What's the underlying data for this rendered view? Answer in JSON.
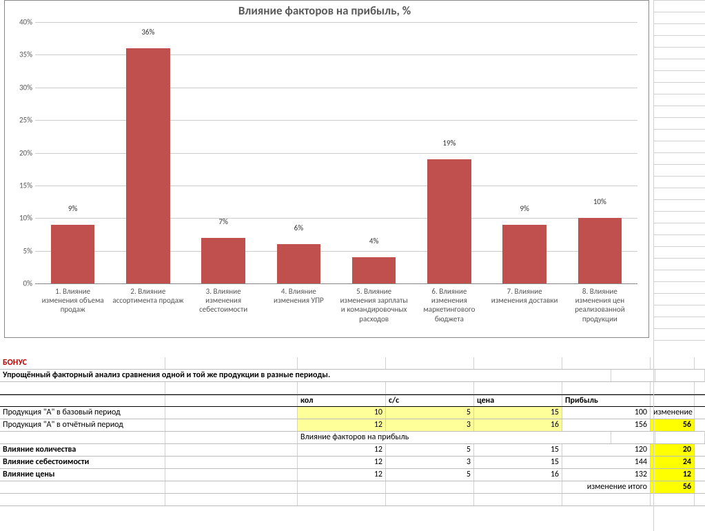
{
  "chart": {
    "type": "bar",
    "title": "Влияние факторов на прибыль, %",
    "title_fontsize": 17,
    "title_color": "#5a5a5a",
    "y_max": 40,
    "y_tick_step": 5,
    "y_tick_format_suffix": "%",
    "bar_color": "#c0504d",
    "grid_color": "#cccccc",
    "axis_color": "#888888",
    "label_fontsize": 11,
    "background_color": "#ffffff",
    "categories": [
      "1. Влияние изменения объема продаж",
      "2. Влияние ассортимента продаж",
      "3. Влияние изменения себестоимости",
      "4. Влияние изменения УПР",
      "5. Влияние изменения зарплаты и командировочных расходов",
      "6. Влияние изменения маркетингового бюджета",
      "7. Влияние изменения доставки",
      "8. Влияние изменения цен реализованной продукции"
    ],
    "values": [
      9,
      36,
      7,
      6,
      4,
      19,
      9,
      10
    ],
    "value_label_suffix": "%"
  },
  "sheet": {
    "bonus_label": "БОНУС",
    "subtitle": "Упрощённый факторный анализ сравнения одной и той же продукции в разные периоды.",
    "headers": {
      "qty": "кол",
      "cost": "с/с",
      "price": "цена",
      "profit": "Прибыль"
    },
    "row_base": {
      "label": "Продукция \"А\" в базовый период",
      "qty": "10",
      "cost": "5",
      "price": "15",
      "profit": "100"
    },
    "row_report": {
      "label": "Продукция \"А\" в отчётный период",
      "qty": "12",
      "cost": "3",
      "price": "16",
      "profit": "156"
    },
    "change_label": "изменение",
    "change_value": "56",
    "factors_header": "Влияние факторов на прибыль",
    "row_qty": {
      "label": "Влияние количества",
      "qty": "12",
      "cost": "5",
      "price": "15",
      "profit": "120",
      "delta": "20"
    },
    "row_cost": {
      "label": "Влияние себестоимости",
      "qty": "12",
      "cost": "3",
      "price": "15",
      "profit": "144",
      "delta": "24"
    },
    "row_price": {
      "label": "Влияние цены",
      "qty": "12",
      "cost": "5",
      "price": "16",
      "profit": "132",
      "delta": "12"
    },
    "total_label": "изменение итого",
    "total_value": "56",
    "colors": {
      "input_bg": "#ffff99",
      "highlight_bg": "#ffff00"
    }
  }
}
